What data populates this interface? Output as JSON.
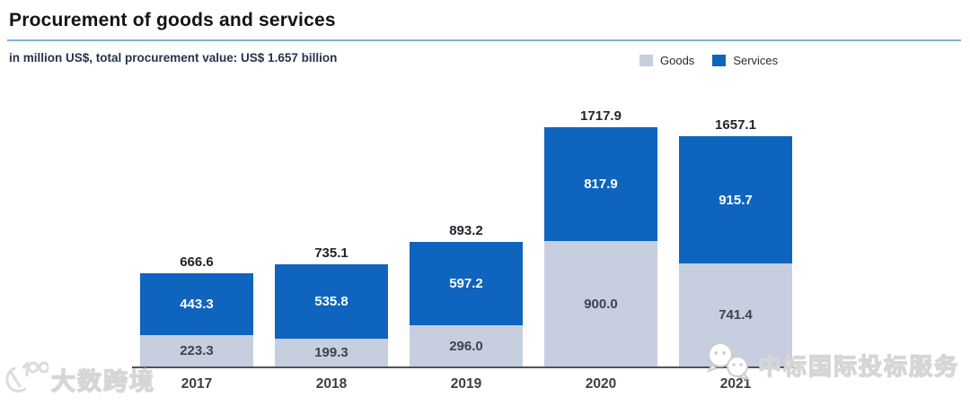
{
  "header": {
    "title": "Procurement of goods and services",
    "subtitle": "in million US$, total procurement value: US$ 1.657 billion"
  },
  "legend": [
    {
      "label": "Goods",
      "color": "#c6cedf"
    },
    {
      "label": "Services",
      "color": "#0f64bd"
    }
  ],
  "chart_data": {
    "type": "bar",
    "stacked": true,
    "title": "Procurement of goods and services",
    "subtitle": "in million US$, total procurement value: US$ 1.657 billion",
    "categories": [
      "2017",
      "2018",
      "2019",
      "2020",
      "2021"
    ],
    "series": [
      {
        "name": "Goods",
        "color": "#c6cedf",
        "values": [
          223.3,
          199.3,
          296.0,
          900.0,
          741.4
        ]
      },
      {
        "name": "Services",
        "color": "#0f64bd",
        "values": [
          443.3,
          535.8,
          597.2,
          817.9,
          915.7
        ]
      }
    ],
    "totals": [
      666.6,
      735.1,
      893.2,
      1717.9,
      1657.1
    ],
    "value_label_format": "one-decimal",
    "legend_position": "top-right",
    "grid": false,
    "axis_color": "#515357",
    "accent_rule_color": "#84aed6"
  },
  "watermarks": {
    "bottom_left": "大数跨境",
    "bottom_right": "中标国际投标服务"
  }
}
